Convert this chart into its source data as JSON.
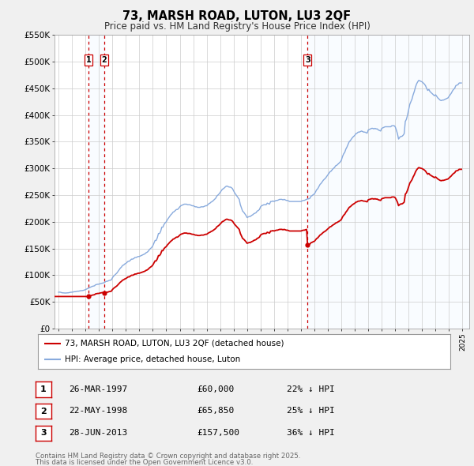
{
  "title": "73, MARSH ROAD, LUTON, LU3 2QF",
  "subtitle": "Price paid vs. HM Land Registry's House Price Index (HPI)",
  "background_color": "#f0f0f0",
  "plot_bg_color": "#ffffff",
  "ylim": [
    0,
    550000
  ],
  "yticks": [
    0,
    50000,
    100000,
    150000,
    200000,
    250000,
    300000,
    350000,
    400000,
    450000,
    500000,
    550000
  ],
  "ytick_labels": [
    "£0",
    "£50K",
    "£100K",
    "£150K",
    "£200K",
    "£250K",
    "£300K",
    "£350K",
    "£400K",
    "£450K",
    "£500K",
    "£550K"
  ],
  "xlim_start": 1994.7,
  "xlim_end": 2025.5,
  "xticks": [
    1995,
    1996,
    1997,
    1998,
    1999,
    2000,
    2001,
    2002,
    2003,
    2004,
    2005,
    2006,
    2007,
    2008,
    2009,
    2010,
    2011,
    2012,
    2013,
    2014,
    2015,
    2016,
    2017,
    2018,
    2019,
    2020,
    2021,
    2022,
    2023,
    2024,
    2025
  ],
  "sale_color": "#cc0000",
  "hpi_color": "#88aadd",
  "shade_color": "#ddeeff",
  "vline_color": "#cc0000",
  "grid_color": "#cccccc",
  "legend_label_sale": "73, MARSH ROAD, LUTON, LU3 2QF (detached house)",
  "legend_label_hpi": "HPI: Average price, detached house, Luton",
  "transactions": [
    {
      "num": 1,
      "date": "26-MAR-1997",
      "year": 1997.23,
      "price": 60000,
      "pct": "22%",
      "dir": "↓"
    },
    {
      "num": 2,
      "date": "22-MAY-1998",
      "year": 1998.38,
      "price": 65850,
      "pct": "25%",
      "dir": "↓"
    },
    {
      "num": 3,
      "date": "28-JUN-2013",
      "year": 2013.49,
      "price": 157500,
      "pct": "36%",
      "dir": "↓"
    }
  ],
  "footer_line1": "Contains HM Land Registry data © Crown copyright and database right 2025.",
  "footer_line2": "This data is licensed under the Open Government Licence v3.0.",
  "hpi_data": {
    "years": [
      1995.0,
      1995.083,
      1995.167,
      1995.25,
      1995.333,
      1995.417,
      1995.5,
      1995.583,
      1995.667,
      1995.75,
      1995.833,
      1995.917,
      1996.0,
      1996.083,
      1996.167,
      1996.25,
      1996.333,
      1996.417,
      1996.5,
      1996.583,
      1996.667,
      1996.75,
      1996.833,
      1996.917,
      1997.0,
      1997.083,
      1997.167,
      1997.25,
      1997.333,
      1997.417,
      1997.5,
      1997.583,
      1997.667,
      1997.75,
      1997.833,
      1997.917,
      1998.0,
      1998.083,
      1998.167,
      1998.25,
      1998.333,
      1998.417,
      1998.5,
      1998.583,
      1998.667,
      1998.75,
      1998.833,
      1998.917,
      1999.0,
      1999.083,
      1999.167,
      1999.25,
      1999.333,
      1999.417,
      1999.5,
      1999.583,
      1999.667,
      1999.75,
      1999.833,
      1999.917,
      2000.0,
      2000.083,
      2000.167,
      2000.25,
      2000.333,
      2000.417,
      2000.5,
      2000.583,
      2000.667,
      2000.75,
      2000.833,
      2000.917,
      2001.0,
      2001.083,
      2001.167,
      2001.25,
      2001.333,
      2001.417,
      2001.5,
      2001.583,
      2001.667,
      2001.75,
      2001.833,
      2001.917,
      2002.0,
      2002.083,
      2002.167,
      2002.25,
      2002.333,
      2002.417,
      2002.5,
      2002.583,
      2002.667,
      2002.75,
      2002.833,
      2002.917,
      2003.0,
      2003.083,
      2003.167,
      2003.25,
      2003.333,
      2003.417,
      2003.5,
      2003.583,
      2003.667,
      2003.75,
      2003.833,
      2003.917,
      2004.0,
      2004.083,
      2004.167,
      2004.25,
      2004.333,
      2004.417,
      2004.5,
      2004.583,
      2004.667,
      2004.75,
      2004.833,
      2004.917,
      2005.0,
      2005.083,
      2005.167,
      2005.25,
      2005.333,
      2005.417,
      2005.5,
      2005.583,
      2005.667,
      2005.75,
      2005.833,
      2005.917,
      2006.0,
      2006.083,
      2006.167,
      2006.25,
      2006.333,
      2006.417,
      2006.5,
      2006.583,
      2006.667,
      2006.75,
      2006.833,
      2006.917,
      2007.0,
      2007.083,
      2007.167,
      2007.25,
      2007.333,
      2007.417,
      2007.5,
      2007.583,
      2007.667,
      2007.75,
      2007.833,
      2007.917,
      2008.0,
      2008.083,
      2008.167,
      2008.25,
      2008.333,
      2008.417,
      2008.5,
      2008.583,
      2008.667,
      2008.75,
      2008.833,
      2008.917,
      2009.0,
      2009.083,
      2009.167,
      2009.25,
      2009.333,
      2009.417,
      2009.5,
      2009.583,
      2009.667,
      2009.75,
      2009.833,
      2009.917,
      2010.0,
      2010.083,
      2010.167,
      2010.25,
      2010.333,
      2010.417,
      2010.5,
      2010.583,
      2010.667,
      2010.75,
      2010.833,
      2010.917,
      2011.0,
      2011.083,
      2011.167,
      2011.25,
      2011.333,
      2011.417,
      2011.5,
      2011.583,
      2011.667,
      2011.75,
      2011.833,
      2011.917,
      2012.0,
      2012.083,
      2012.167,
      2012.25,
      2012.333,
      2012.417,
      2012.5,
      2012.583,
      2012.667,
      2012.75,
      2012.833,
      2012.917,
      2013.0,
      2013.083,
      2013.167,
      2013.25,
      2013.333,
      2013.417,
      2013.5,
      2013.583,
      2013.667,
      2013.75,
      2013.833,
      2013.917,
      2014.0,
      2014.083,
      2014.167,
      2014.25,
      2014.333,
      2014.417,
      2014.5,
      2014.583,
      2014.667,
      2014.75,
      2014.833,
      2014.917,
      2015.0,
      2015.083,
      2015.167,
      2015.25,
      2015.333,
      2015.417,
      2015.5,
      2015.583,
      2015.667,
      2015.75,
      2015.833,
      2015.917,
      2016.0,
      2016.083,
      2016.167,
      2016.25,
      2016.333,
      2016.417,
      2016.5,
      2016.583,
      2016.667,
      2016.75,
      2016.833,
      2016.917,
      2017.0,
      2017.083,
      2017.167,
      2017.25,
      2017.333,
      2017.417,
      2017.5,
      2017.583,
      2017.667,
      2017.75,
      2017.833,
      2017.917,
      2018.0,
      2018.083,
      2018.167,
      2018.25,
      2018.333,
      2018.417,
      2018.5,
      2018.583,
      2018.667,
      2018.75,
      2018.833,
      2018.917,
      2019.0,
      2019.083,
      2019.167,
      2019.25,
      2019.333,
      2019.417,
      2019.5,
      2019.583,
      2019.667,
      2019.75,
      2019.833,
      2019.917,
      2020.0,
      2020.083,
      2020.167,
      2020.25,
      2020.333,
      2020.417,
      2020.5,
      2020.583,
      2020.667,
      2020.75,
      2020.833,
      2020.917,
      2021.0,
      2021.083,
      2021.167,
      2021.25,
      2021.333,
      2021.417,
      2021.5,
      2021.583,
      2021.667,
      2021.75,
      2021.833,
      2021.917,
      2022.0,
      2022.083,
      2022.167,
      2022.25,
      2022.333,
      2022.417,
      2022.5,
      2022.583,
      2022.667,
      2022.75,
      2022.833,
      2022.917,
      2023.0,
      2023.083,
      2023.167,
      2023.25,
      2023.333,
      2023.417,
      2023.5,
      2023.583,
      2023.667,
      2023.75,
      2023.833,
      2023.917,
      2024.0,
      2024.083,
      2024.167,
      2024.25,
      2024.333,
      2024.417,
      2024.5,
      2024.583,
      2024.667,
      2024.75,
      2024.833,
      2024.917
    ],
    "values": [
      68000,
      68200,
      67800,
      67000,
      66800,
      66500,
      66500,
      66700,
      67000,
      67000,
      67500,
      68000,
      68000,
      68500,
      69000,
      69000,
      69500,
      70000,
      70000,
      70500,
      71000,
      71000,
      71500,
      72000,
      73000,
      74000,
      75000,
      76000,
      77000,
      78000,
      79000,
      79500,
      80000,
      82000,
      82500,
      83000,
      83000,
      84000,
      84500,
      85000,
      85500,
      86000,
      88000,
      88500,
      89000,
      90000,
      90500,
      91000,
      95000,
      98000,
      100000,
      102000,
      104000,
      107000,
      110000,
      113000,
      115000,
      118000,
      119000,
      121000,
      122000,
      124000,
      126000,
      126000,
      128000,
      130000,
      130000,
      131000,
      133000,
      133000,
      134000,
      135000,
      135000,
      136000,
      137000,
      138000,
      139000,
      140000,
      142000,
      143000,
      145000,
      148000,
      150000,
      152000,
      155000,
      160000,
      165000,
      165000,
      170000,
      178000,
      178000,
      182000,
      190000,
      190000,
      195000,
      198000,
      200000,
      204000,
      207000,
      210000,
      213000,
      215000,
      218000,
      219000,
      221000,
      223000,
      223000,
      225000,
      228000,
      230000,
      231000,
      232000,
      233000,
      233000,
      233000,
      232000,
      232000,
      232000,
      231000,
      230000,
      230000,
      229000,
      228000,
      228000,
      227000,
      227000,
      227000,
      228000,
      228000,
      228000,
      229000,
      230000,
      230000,
      232000,
      234000,
      235000,
      237000,
      238000,
      240000,
      242000,
      244000,
      248000,
      250000,
      252000,
      255000,
      258000,
      261000,
      262000,
      264000,
      266000,
      267000,
      266000,
      265000,
      265000,
      264000,
      262000,
      258000,
      254000,
      251000,
      248000,
      245000,
      242000,
      232000,
      226000,
      220000,
      218000,
      215000,
      212000,
      208000,
      209000,
      210000,
      210000,
      212000,
      213000,
      215000,
      216000,
      217000,
      220000,
      221000,
      223000,
      228000,
      230000,
      231000,
      232000,
      232000,
      232000,
      235000,
      234000,
      233000,
      238000,
      238000,
      239000,
      238000,
      239000,
      240000,
      240000,
      241000,
      242000,
      242000,
      242000,
      241000,
      242000,
      241000,
      240000,
      240000,
      239000,
      238000,
      238000,
      238000,
      238000,
      238000,
      238000,
      238000,
      238000,
      238000,
      238000,
      238000,
      239000,
      240000,
      240000,
      241000,
      242000,
      243000,
      243000,
      244000,
      248000,
      249000,
      251000,
      252000,
      256000,
      260000,
      262000,
      266000,
      270000,
      272000,
      275000,
      278000,
      280000,
      282000,
      285000,
      288000,
      291000,
      294000,
      295000,
      298000,
      300000,
      302000,
      305000,
      306000,
      308000,
      310000,
      312000,
      315000,
      322000,
      327000,
      330000,
      336000,
      340000,
      345000,
      350000,
      352000,
      355000,
      358000,
      360000,
      362000,
      365000,
      366000,
      368000,
      368000,
      369000,
      370000,
      369000,
      368000,
      368000,
      367000,
      366000,
      372000,
      373000,
      374000,
      375000,
      375000,
      374000,
      375000,
      374000,
      374000,
      372000,
      371000,
      370000,
      375000,
      376000,
      377000,
      378000,
      378000,
      378000,
      378000,
      378000,
      378000,
      380000,
      380000,
      380000,
      378000,
      372000,
      365000,
      355000,
      358000,
      360000,
      360000,
      362000,
      365000,
      388000,
      392000,
      400000,
      410000,
      420000,
      425000,
      430000,
      438000,
      444000,
      452000,
      458000,
      462000,
      465000,
      464000,
      463000,
      462000,
      460000,
      458000,
      455000,
      450000,
      446000,
      448000,
      444000,
      442000,
      440000,
      438000,
      436000,
      438000,
      435000,
      432000,
      430000,
      428000,
      427000,
      428000,
      428000,
      429000,
      430000,
      431000,
      432000,
      435000,
      438000,
      441000,
      445000,
      448000,
      450000,
      455000,
      456000,
      457000,
      460000,
      460000,
      460000
    ]
  }
}
